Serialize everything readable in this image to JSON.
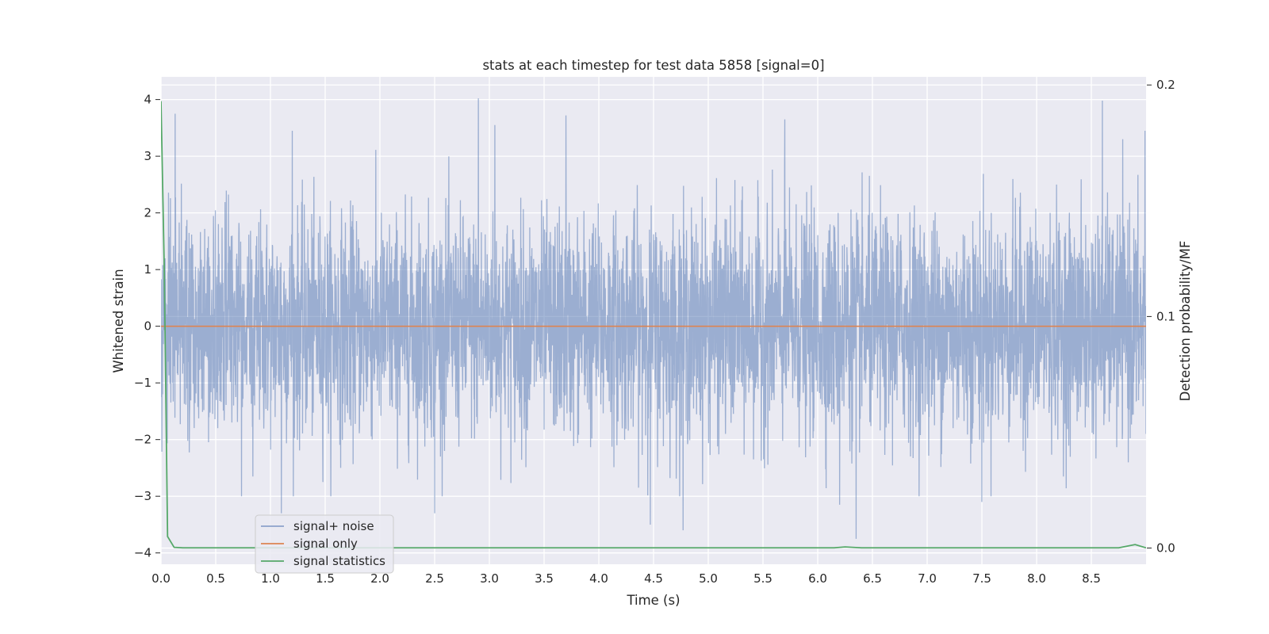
{
  "chart_data": {
    "type": "line",
    "title": "stats at each timestep for test data 5858 [signal=0]",
    "xlabel": "Time (s)",
    "ylabel": "Whitened strain",
    "y2label": "Detection probability/MF",
    "xlim": [
      0.0,
      9.0
    ],
    "ylim": [
      -4.2,
      4.4
    ],
    "y2lim": [
      -0.007,
      0.2035
    ],
    "x_ticks": [
      "0.0",
      "0.5",
      "1.0",
      "1.5",
      "2.0",
      "2.5",
      "3.0",
      "3.5",
      "4.0",
      "4.5",
      "5.0",
      "5.5",
      "6.0",
      "6.5",
      "7.0",
      "7.5",
      "8.0",
      "8.5"
    ],
    "y_ticks": [
      "−4",
      "−3",
      "−2",
      "−1",
      "0",
      "1",
      "2",
      "3",
      "4"
    ],
    "y2_ticks": [
      "0.0",
      "0.1",
      "0.2"
    ],
    "grid": true,
    "legend_position": "lower-left",
    "series": [
      {
        "name": "signal+ noise",
        "axis": "left",
        "color": "#4c72b0",
        "description": "whitened noise, approx. Gaussian, std ~1, peaks near +4.0 and -3.7",
        "peaks": [
          {
            "x": 0.13,
            "y": 3.75
          },
          {
            "x": 1.2,
            "y": 3.45
          },
          {
            "x": 2.9,
            "y": 4.02
          },
          {
            "x": 3.05,
            "y": 3.55
          },
          {
            "x": 3.7,
            "y": 3.72
          },
          {
            "x": 5.7,
            "y": 3.65
          },
          {
            "x": 8.6,
            "y": 3.98
          },
          {
            "x": 8.99,
            "y": 3.45
          },
          {
            "x": 4.47,
            "y": -3.5
          },
          {
            "x": 4.77,
            "y": -3.6
          },
          {
            "x": 6.35,
            "y": -3.75
          },
          {
            "x": 1.1,
            "y": -3.3
          },
          {
            "x": 2.5,
            "y": -3.3
          },
          {
            "x": 6.2,
            "y": -3.15
          },
          {
            "x": 7.5,
            "y": -3.1
          }
        ]
      },
      {
        "name": "signal only",
        "axis": "left",
        "color": "#dd8452",
        "x": [
          0.0,
          9.0
        ],
        "y": [
          0.0,
          0.0
        ]
      },
      {
        "name": "signal statistics",
        "axis": "right",
        "color": "#55a868",
        "x": [
          0.0,
          0.03,
          0.06,
          0.12,
          0.2,
          1.0,
          2.0,
          3.0,
          4.0,
          5.0,
          6.0,
          6.15,
          6.25,
          6.4,
          7.0,
          8.0,
          8.75,
          8.9,
          9.0
        ],
        "y": [
          0.193,
          0.12,
          0.005,
          0.0003,
          0.0001,
          0.0001,
          0.0001,
          0.0001,
          0.0001,
          0.0001,
          0.0001,
          0.0001,
          0.0005,
          0.0001,
          0.0001,
          0.0001,
          0.0001,
          0.0015,
          0.0001
        ]
      }
    ]
  }
}
